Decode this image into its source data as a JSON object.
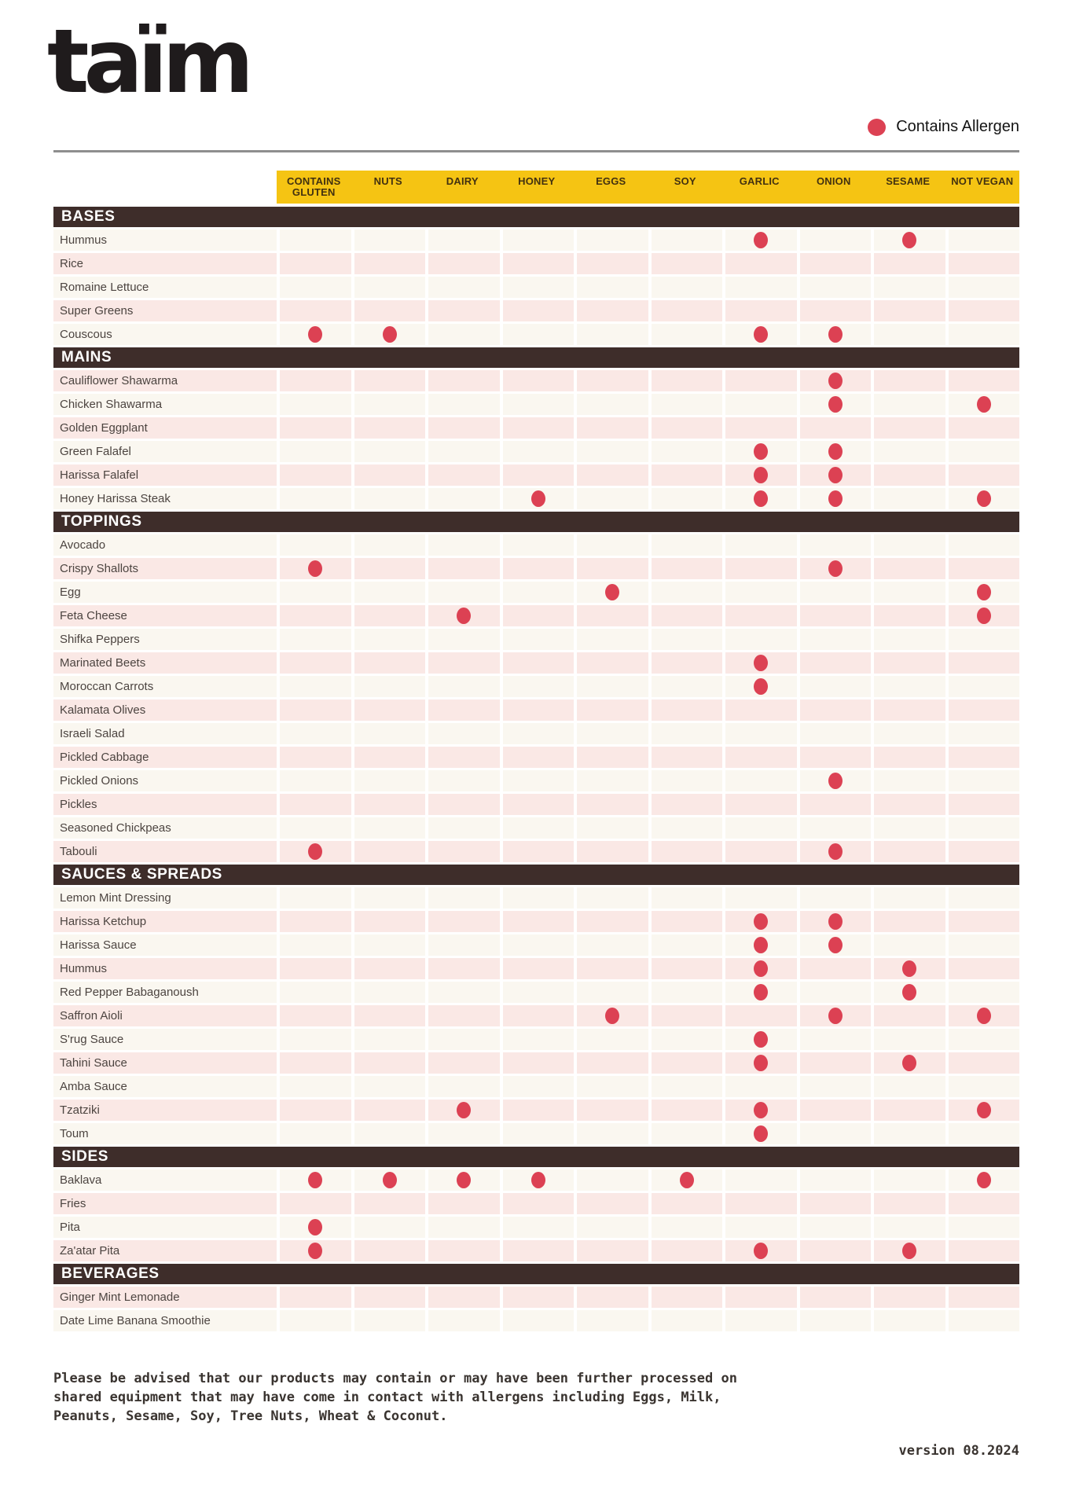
{
  "brand": {
    "logo": "taïm"
  },
  "legend": {
    "label": "Contains Allergen",
    "dot_color": "#DC4153"
  },
  "colors": {
    "header_yellow": "#F5C413",
    "section_brown": "#3E2D2A",
    "row_pink": "#FAE8E5",
    "row_cream": "#FAF7F0",
    "allergen_dot": "#DC4153",
    "rule_gray": "#8E8E8E"
  },
  "table": {
    "columns": [
      "CONTAINS GLUTEN",
      "NUTS",
      "DAIRY",
      "HONEY",
      "EGGS",
      "SOY",
      "GARLIC",
      "ONION",
      "SESAME",
      "NOT VEGAN"
    ],
    "sections": [
      {
        "title": "BASES",
        "first_row_pink": false,
        "rows": [
          {
            "label": "Hummus",
            "allergens": [
              "GARLIC",
              "SESAME"
            ]
          },
          {
            "label": "Rice",
            "allergens": []
          },
          {
            "label": "Romaine Lettuce",
            "allergens": []
          },
          {
            "label": "Super Greens",
            "allergens": []
          },
          {
            "label": "Couscous",
            "allergens": [
              "CONTAINS GLUTEN",
              "NUTS",
              "GARLIC",
              "ONION"
            ]
          }
        ]
      },
      {
        "title": "MAINS",
        "first_row_pink": true,
        "rows": [
          {
            "label": "Cauliflower Shawarma",
            "allergens": [
              "ONION"
            ]
          },
          {
            "label": "Chicken Shawarma",
            "allergens": [
              "ONION",
              "NOT VEGAN"
            ]
          },
          {
            "label": "Golden Eggplant",
            "allergens": []
          },
          {
            "label": "Green Falafel",
            "allergens": [
              "GARLIC",
              "ONION"
            ]
          },
          {
            "label": "Harissa Falafel",
            "allergens": [
              "GARLIC",
              "ONION"
            ]
          },
          {
            "label": "Honey Harissa Steak",
            "allergens": [
              "HONEY",
              "GARLIC",
              "ONION",
              "NOT VEGAN"
            ]
          }
        ]
      },
      {
        "title": "TOPPINGS",
        "first_row_pink": false,
        "rows": [
          {
            "label": "Avocado",
            "allergens": []
          },
          {
            "label": "Crispy Shallots",
            "allergens": [
              "CONTAINS GLUTEN",
              "ONION"
            ]
          },
          {
            "label": "Egg",
            "allergens": [
              "EGGS",
              "NOT VEGAN"
            ]
          },
          {
            "label": "Feta Cheese",
            "allergens": [
              "DAIRY",
              "NOT VEGAN"
            ]
          },
          {
            "label": "Shifka Peppers",
            "allergens": []
          },
          {
            "label": "Marinated Beets",
            "allergens": [
              "GARLIC"
            ]
          },
          {
            "label": "Moroccan Carrots",
            "allergens": [
              "GARLIC"
            ]
          },
          {
            "label": "Kalamata Olives",
            "allergens": []
          },
          {
            "label": "Israeli Salad",
            "allergens": []
          },
          {
            "label": "Pickled Cabbage",
            "allergens": []
          },
          {
            "label": "Pickled Onions",
            "allergens": [
              "ONION"
            ]
          },
          {
            "label": "Pickles",
            "allergens": []
          },
          {
            "label": "Seasoned Chickpeas",
            "allergens": []
          },
          {
            "label": "Tabouli",
            "allergens": [
              "CONTAINS GLUTEN",
              "ONION"
            ]
          }
        ]
      },
      {
        "title": "SAUCES & SPREADS",
        "first_row_pink": false,
        "rows": [
          {
            "label": "Lemon Mint Dressing",
            "allergens": []
          },
          {
            "label": "Harissa Ketchup",
            "allergens": [
              "GARLIC",
              "ONION"
            ]
          },
          {
            "label": "Harissa Sauce",
            "allergens": [
              "GARLIC",
              "ONION"
            ]
          },
          {
            "label": "Hummus",
            "allergens": [
              "GARLIC",
              "SESAME"
            ]
          },
          {
            "label": "Red Pepper Babaganoush",
            "allergens": [
              "GARLIC",
              "SESAME"
            ]
          },
          {
            "label": "Saffron Aioli",
            "allergens": [
              "EGGS",
              "ONION",
              "NOT VEGAN"
            ]
          },
          {
            "label": "S'rug Sauce",
            "allergens": [
              "GARLIC"
            ]
          },
          {
            "label": "Tahini Sauce",
            "allergens": [
              "GARLIC",
              "SESAME"
            ]
          },
          {
            "label": "Amba Sauce",
            "allergens": []
          },
          {
            "label": "Tzatziki",
            "allergens": [
              "DAIRY",
              "GARLIC",
              "NOT VEGAN"
            ]
          },
          {
            "label": "Toum",
            "allergens": [
              "GARLIC"
            ]
          }
        ]
      },
      {
        "title": "SIDES",
        "first_row_pink": false,
        "rows": [
          {
            "label": "Baklava",
            "allergens": [
              "CONTAINS GLUTEN",
              "NUTS",
              "DAIRY",
              "HONEY",
              "SOY",
              "NOT VEGAN"
            ]
          },
          {
            "label": "Fries",
            "allergens": []
          },
          {
            "label": "Pita",
            "allergens": [
              "CONTAINS GLUTEN"
            ]
          },
          {
            "label": "Za'atar Pita",
            "allergens": [
              "CONTAINS GLUTEN",
              "GARLIC",
              "SESAME"
            ]
          }
        ]
      },
      {
        "title": "BEVERAGES",
        "first_row_pink": true,
        "rows": [
          {
            "label": "Ginger Mint Lemonade",
            "allergens": []
          },
          {
            "label": "Date Lime Banana Smoothie",
            "allergens": []
          }
        ]
      }
    ]
  },
  "footer": {
    "lines": [
      "Please be advised that our products may contain or may have been further processed on",
      "shared equipment that may have come in contact with allergens including Eggs, Milk,",
      "Peanuts, Sesame, Soy, Tree Nuts, Wheat & Coconut."
    ],
    "version": "version 08.2024"
  }
}
